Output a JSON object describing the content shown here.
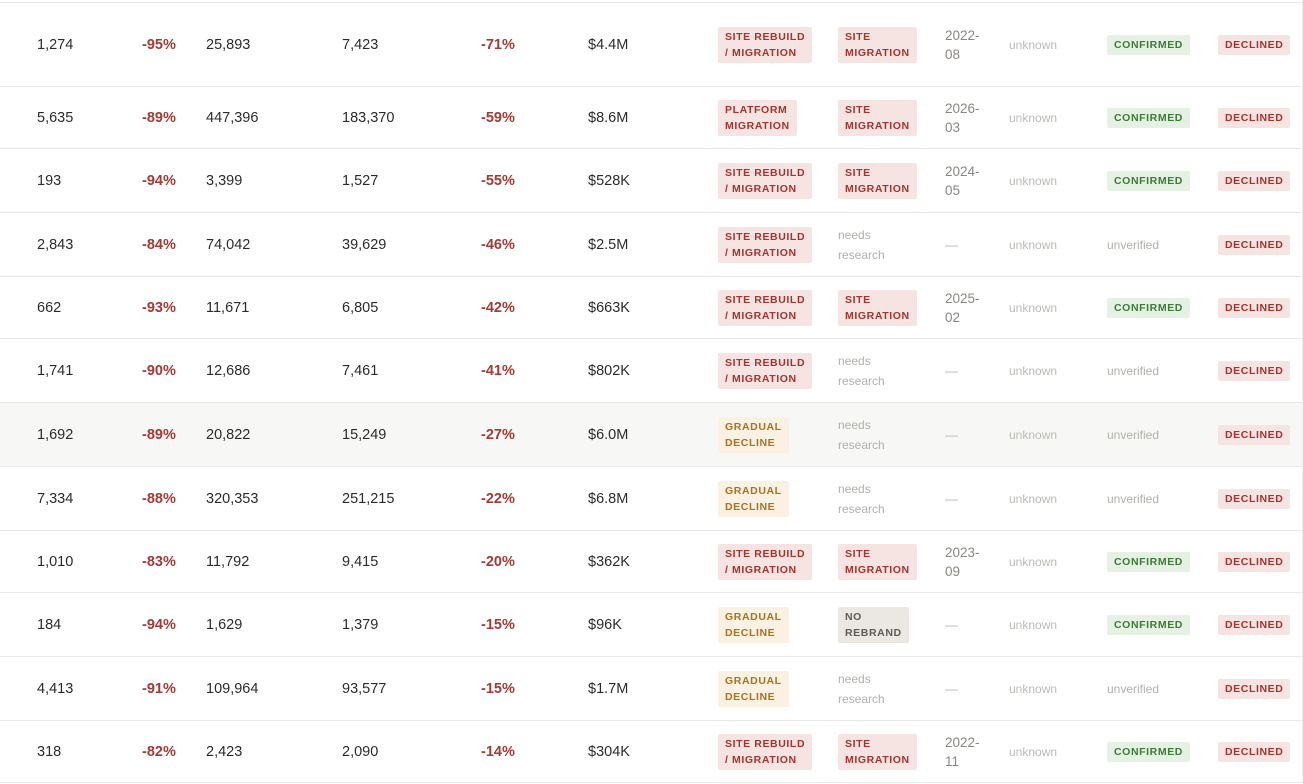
{
  "rows": [
    {
      "v1": "1,274",
      "p1": "-95%",
      "v2": "25,893",
      "v3": "7,423",
      "p2": "-71%",
      "usd": "$4.4M",
      "cause": "SITE REBUILD\n/ MIGRATION",
      "cause_tone": "red",
      "event": "SITE\nMIGRATION",
      "event_tone": "red",
      "date": "2022-\n08",
      "src": "unknown",
      "status": "CONFIRMED",
      "verdict": "DECLINED",
      "highlight": false
    },
    {
      "v1": "5,635",
      "p1": "-89%",
      "v2": "447,396",
      "v3": "183,370",
      "p2": "-59%",
      "usd": "$8.6M",
      "cause": "PLATFORM\nMIGRATION",
      "cause_tone": "red",
      "event": "SITE\nMIGRATION",
      "event_tone": "red",
      "date": "2026-\n03",
      "src": "unknown",
      "status": "CONFIRMED",
      "verdict": "DECLINED",
      "highlight": false
    },
    {
      "v1": "193",
      "p1": "-94%",
      "v2": "3,399",
      "v3": "1,527",
      "p2": "-55%",
      "usd": "$528K",
      "cause": "SITE REBUILD\n/ MIGRATION",
      "cause_tone": "red",
      "event": "SITE\nMIGRATION",
      "event_tone": "red",
      "date": "2024-\n05",
      "src": "unknown",
      "status": "CONFIRMED",
      "verdict": "DECLINED",
      "highlight": false
    },
    {
      "v1": "2,843",
      "p1": "-84%",
      "v2": "74,042",
      "v3": "39,629",
      "p2": "-46%",
      "usd": "$2.5M",
      "cause": "SITE REBUILD\n/ MIGRATION",
      "cause_tone": "red",
      "event": "needs\nresearch",
      "event_tone": "text",
      "date": "—",
      "src": "unknown",
      "status": "unverified",
      "verdict": "DECLINED",
      "highlight": false
    },
    {
      "v1": "662",
      "p1": "-93%",
      "v2": "11,671",
      "v3": "6,805",
      "p2": "-42%",
      "usd": "$663K",
      "cause": "SITE REBUILD\n/ MIGRATION",
      "cause_tone": "red",
      "event": "SITE\nMIGRATION",
      "event_tone": "red",
      "date": "2025-\n02",
      "src": "unknown",
      "status": "CONFIRMED",
      "verdict": "DECLINED",
      "highlight": false
    },
    {
      "v1": "1,741",
      "p1": "-90%",
      "v2": "12,686",
      "v3": "7,461",
      "p2": "-41%",
      "usd": "$802K",
      "cause": "SITE REBUILD\n/ MIGRATION",
      "cause_tone": "red",
      "event": "needs\nresearch",
      "event_tone": "text",
      "date": "—",
      "src": "unknown",
      "status": "unverified",
      "verdict": "DECLINED",
      "highlight": false
    },
    {
      "v1": "1,692",
      "p1": "-89%",
      "v2": "20,822",
      "v3": "15,249",
      "p2": "-27%",
      "usd": "$6.0M",
      "cause": "GRADUAL\nDECLINE",
      "cause_tone": "amber",
      "event": "needs\nresearch",
      "event_tone": "text",
      "date": "—",
      "src": "unknown",
      "status": "unverified",
      "verdict": "DECLINED",
      "highlight": true
    },
    {
      "v1": "7,334",
      "p1": "-88%",
      "v2": "320,353",
      "v3": "251,215",
      "p2": "-22%",
      "usd": "$6.8M",
      "cause": "GRADUAL\nDECLINE",
      "cause_tone": "amber",
      "event": "needs\nresearch",
      "event_tone": "text",
      "date": "—",
      "src": "unknown",
      "status": "unverified",
      "verdict": "DECLINED",
      "highlight": false
    },
    {
      "v1": "1,010",
      "p1": "-83%",
      "v2": "11,792",
      "v3": "9,415",
      "p2": "-20%",
      "usd": "$362K",
      "cause": "SITE REBUILD\n/ MIGRATION",
      "cause_tone": "red",
      "event": "SITE\nMIGRATION",
      "event_tone": "red",
      "date": "2023-\n09",
      "src": "unknown",
      "status": "CONFIRMED",
      "verdict": "DECLINED",
      "highlight": false
    },
    {
      "v1": "184",
      "p1": "-94%",
      "v2": "1,629",
      "v3": "1,379",
      "p2": "-15%",
      "usd": "$96K",
      "cause": "GRADUAL\nDECLINE",
      "cause_tone": "amber",
      "event": "NO\nREBRAND",
      "event_tone": "grey",
      "date": "—",
      "src": "unknown",
      "status": "CONFIRMED",
      "verdict": "DECLINED",
      "highlight": false
    },
    {
      "v1": "4,413",
      "p1": "-91%",
      "v2": "109,964",
      "v3": "93,577",
      "p2": "-15%",
      "usd": "$1.7M",
      "cause": "GRADUAL\nDECLINE",
      "cause_tone": "amber",
      "event": "needs\nresearch",
      "event_tone": "text",
      "date": "—",
      "src": "unknown",
      "status": "unverified",
      "verdict": "DECLINED",
      "highlight": false
    },
    {
      "v1": "318",
      "p1": "-82%",
      "v2": "2,423",
      "v3": "2,090",
      "p2": "-14%",
      "usd": "$304K",
      "cause": "SITE REBUILD\n/ MIGRATION",
      "cause_tone": "red",
      "event": "SITE\nMIGRATION",
      "event_tone": "red",
      "date": "2022-\n11",
      "src": "unknown",
      "status": "CONFIRMED",
      "verdict": "DECLINED",
      "highlight": false
    }
  ]
}
